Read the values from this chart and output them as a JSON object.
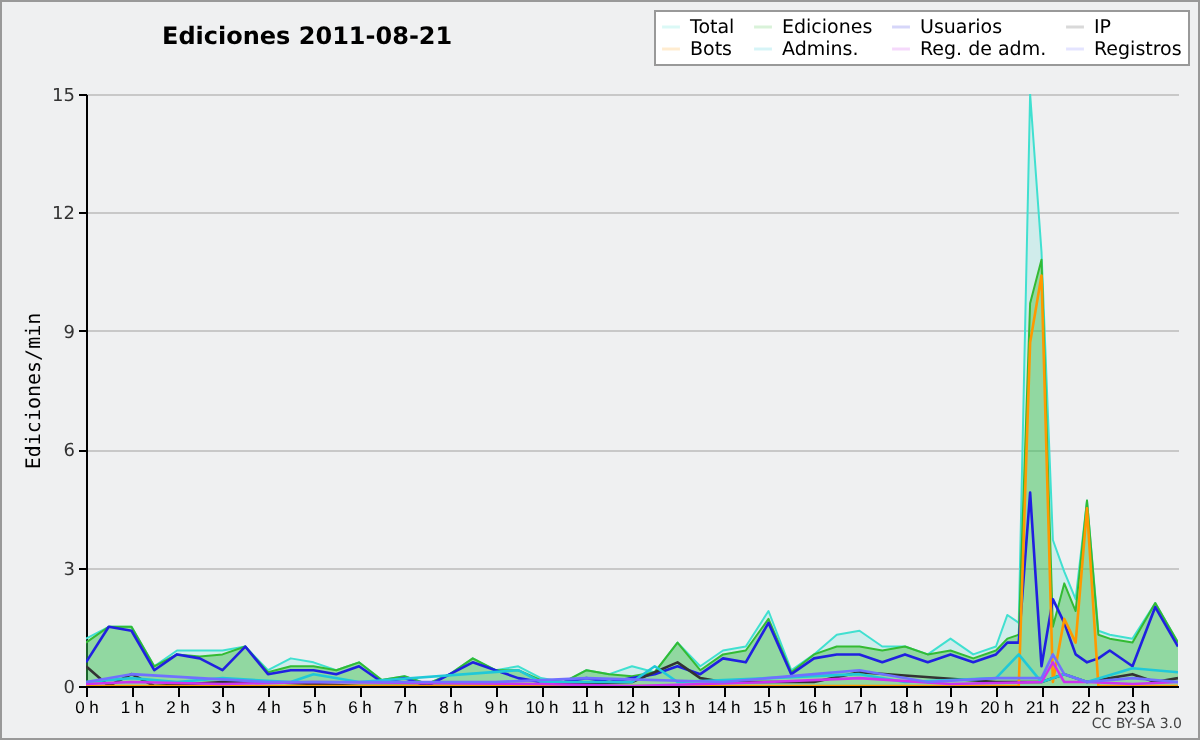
{
  "chart_data": {
    "type": "line",
    "title": "Ediciones 2011-08-21",
    "ylabel": "Ediciones/min",
    "x": [
      0,
      0.5,
      1,
      1.5,
      2,
      2.5,
      3,
      3.5,
      4,
      4.5,
      5,
      5.5,
      6,
      6.5,
      7,
      7.5,
      8,
      8.5,
      9,
      9.5,
      10,
      10.5,
      11,
      11.5,
      12,
      12.5,
      13,
      13.5,
      14,
      14.5,
      15,
      15.5,
      16,
      16.5,
      17,
      17.5,
      18,
      18.5,
      19,
      19.5,
      20,
      20.25,
      20.5,
      20.75,
      21,
      21.25,
      21.5,
      21.75,
      22,
      22.25,
      22.5,
      23,
      23.5,
      24
    ],
    "series": [
      {
        "name": "Total",
        "type": "area",
        "color": "#40e0d0",
        "values": [
          1.2,
          1.5,
          1.5,
          0.5,
          0.9,
          0.9,
          0.9,
          1.0,
          0.4,
          0.7,
          0.6,
          0.4,
          0.6,
          0.15,
          0.25,
          0.05,
          0.3,
          0.7,
          0.4,
          0.5,
          0.2,
          0.1,
          0.4,
          0.3,
          0.5,
          0.35,
          1.1,
          0.5,
          0.9,
          1.0,
          1.9,
          0.4,
          0.8,
          1.3,
          1.4,
          1.0,
          1.0,
          0.8,
          1.2,
          0.8,
          1.0,
          1.8,
          1.6,
          15,
          11,
          3.7,
          2.9,
          2.2,
          4.7,
          1.4,
          1.3,
          1.2,
          2.1,
          1.1
        ]
      },
      {
        "name": "Ediciones",
        "type": "area",
        "color": "#33bb33",
        "values": [
          1.1,
          1.5,
          1.5,
          0.5,
          0.8,
          0.75,
          0.8,
          1.0,
          0.35,
          0.5,
          0.5,
          0.4,
          0.6,
          0.15,
          0.25,
          0.05,
          0.3,
          0.7,
          0.4,
          0.4,
          0.15,
          0.1,
          0.4,
          0.3,
          0.25,
          0.35,
          1.1,
          0.4,
          0.8,
          0.9,
          1.7,
          0.35,
          0.8,
          1.0,
          1.0,
          0.9,
          1.0,
          0.8,
          0.9,
          0.7,
          0.9,
          1.2,
          1.3,
          9.7,
          10.8,
          1.5,
          2.6,
          1.9,
          4.7,
          1.3,
          1.2,
          1.1,
          2.1,
          1.1
        ]
      },
      {
        "name": "Usuarios",
        "color": "#2020e0",
        "values": [
          0.6,
          1.5,
          1.4,
          0.4,
          0.8,
          0.7,
          0.4,
          1.0,
          0.3,
          0.4,
          0.4,
          0.3,
          0.5,
          0.1,
          0.2,
          0,
          0.3,
          0.6,
          0.4,
          0.2,
          0.1,
          0.1,
          0.2,
          0.1,
          0.2,
          0.3,
          0.5,
          0.3,
          0.7,
          0.6,
          1.6,
          0.3,
          0.7,
          0.8,
          0.8,
          0.6,
          0.8,
          0.6,
          0.8,
          0.6,
          0.8,
          1.1,
          1.1,
          4.9,
          0.5,
          2.2,
          1.6,
          0.8,
          0.6,
          0.7,
          0.9,
          0.5,
          2.0,
          1.0
        ]
      },
      {
        "name": "IP",
        "color": "#333333",
        "x": [
          0,
          0.5,
          1,
          1.5,
          3,
          4,
          6,
          9,
          12,
          13,
          13.5,
          14,
          15,
          16,
          17,
          20,
          21,
          21.5,
          22,
          23,
          23.5,
          24
        ],
        "values": [
          0.5,
          0,
          0.3,
          0,
          0.1,
          0.1,
          0,
          0,
          0.1,
          0.6,
          0.2,
          0.1,
          0.1,
          0.1,
          0.35,
          0.1,
          0.1,
          0.3,
          0.1,
          0.3,
          0.1,
          0.2
        ]
      },
      {
        "name": "Bots",
        "color": "#ff9900",
        "x": [
          0,
          20.5,
          20.75,
          21,
          21.25,
          21.5,
          21.75,
          22,
          22.25,
          24
        ],
        "values": [
          0,
          0,
          8.7,
          10.4,
          0.1,
          1.7,
          1.1,
          4.5,
          0,
          0
        ]
      },
      {
        "name": "Admins.",
        "color": "#20c8d8",
        "x": [
          0,
          1,
          2,
          3,
          4.5,
          5,
          6,
          9.5,
          10,
          12,
          12.5,
          13,
          15,
          17,
          18,
          20,
          20.5,
          21,
          21.5,
          22,
          23,
          24
        ],
        "values": [
          0.1,
          0.2,
          0.1,
          0.2,
          0.1,
          0.3,
          0.1,
          0.4,
          0.1,
          0.1,
          0.5,
          0.1,
          0.2,
          0.3,
          0.1,
          0.2,
          0.8,
          0.1,
          0.3,
          0.1,
          0.45,
          0.35
        ]
      },
      {
        "name": "Reg. de adm.",
        "color": "#cc33ee",
        "x": [
          0,
          1,
          3,
          5,
          10,
          12,
          15,
          17,
          19,
          21,
          21.25,
          21.5,
          22,
          23,
          24
        ],
        "values": [
          0.05,
          0.1,
          0.05,
          0.1,
          0.05,
          0,
          0.1,
          0.2,
          0.05,
          0.1,
          0.6,
          0.1,
          0.1,
          0.05,
          0.1
        ]
      },
      {
        "name": "Registros",
        "color": "#7070ff",
        "x": [
          0,
          1,
          2.5,
          4,
          6,
          9,
          11,
          14,
          16,
          17,
          18.5,
          20,
          21,
          21.25,
          21.5,
          22,
          23,
          24
        ],
        "values": [
          0.1,
          0.3,
          0.2,
          0.1,
          0.1,
          0.1,
          0.2,
          0.1,
          0.3,
          0.4,
          0.1,
          0.2,
          0.2,
          0.8,
          0.3,
          0.1,
          0.2,
          0.1
        ]
      }
    ],
    "xlim": [
      0,
      24
    ],
    "xticks": [
      {
        "value": 0,
        "label": "0 h"
      },
      {
        "value": 1,
        "label": "1 h"
      },
      {
        "value": 2,
        "label": "2 h"
      },
      {
        "value": 3,
        "label": "3 h"
      },
      {
        "value": 4,
        "label": "4 h"
      },
      {
        "value": 5,
        "label": "5 h"
      },
      {
        "value": 6,
        "label": "6 h"
      },
      {
        "value": 7,
        "label": "7 h"
      },
      {
        "value": 8,
        "label": "8 h"
      },
      {
        "value": 9,
        "label": "9 h"
      },
      {
        "value": 10,
        "label": "10 h"
      },
      {
        "value": 11,
        "label": "11 h"
      },
      {
        "value": 12,
        "label": "12 h"
      },
      {
        "value": 13,
        "label": "13 h"
      },
      {
        "value": 14,
        "label": "14 h"
      },
      {
        "value": 15,
        "label": "15 h"
      },
      {
        "value": 16,
        "label": "16 h"
      },
      {
        "value": 17,
        "label": "17 h"
      },
      {
        "value": 18,
        "label": "18 h"
      },
      {
        "value": 19,
        "label": "19 h"
      },
      {
        "value": 20,
        "label": "20 h"
      },
      {
        "value": 21,
        "label": "21 h"
      },
      {
        "value": 22,
        "label": "22 h"
      },
      {
        "value": 23,
        "label": "23 h"
      }
    ],
    "ylim": [
      0,
      15
    ],
    "yticks": [
      0,
      3,
      6,
      9,
      12,
      15
    ],
    "grid": "y",
    "legend": "top right",
    "annotations": [
      "CC BY-SA 3.0"
    ]
  }
}
